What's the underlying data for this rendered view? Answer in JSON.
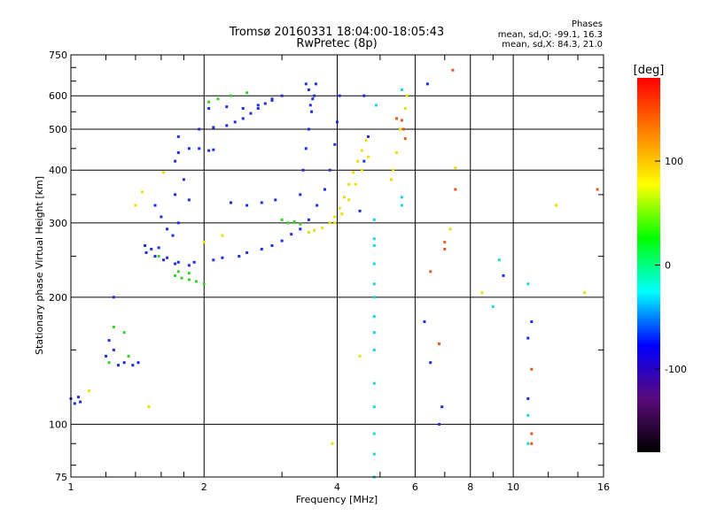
{
  "chart_data": {
    "type": "scatter",
    "title": "Tromsø 20160331 18:04:00-18:05:43",
    "subtitle": "RwPretec (8p)",
    "xlabel": "Frequency [MHz]",
    "ylabel": "Stationary phase Virtual Height [km]",
    "x_scale": "log",
    "y_scale": "log",
    "xlim": [
      1,
      16
    ],
    "ylim": [
      75,
      750
    ],
    "x_ticks": [
      1,
      2,
      4,
      6,
      8,
      10,
      16
    ],
    "y_ticks": [
      75,
      100,
      200,
      300,
      400,
      500,
      600,
      750
    ],
    "grid": true,
    "stats": {
      "heading": "Phases",
      "line_o": "mean, sd,O: -99.1, 16.3",
      "line_x": "mean, sd,X:  84.3, 21.0"
    },
    "colorbar": {
      "label": "[deg]",
      "range": [
        -180,
        180
      ],
      "ticks": [
        100,
        0,
        -100
      ],
      "colors": [
        "#000000",
        "#5a0a7a",
        "#0000ff",
        "#00ffff",
        "#00ff00",
        "#ffff00",
        "#ff8000",
        "#ff0000"
      ]
    },
    "series": [
      {
        "points": [
          [
            1.0,
            115
          ],
          [
            1.02,
            112
          ],
          [
            1.04,
            116
          ],
          [
            1.05,
            113
          ],
          [
            1.2,
            145
          ],
          [
            1.22,
            158
          ],
          [
            1.25,
            150
          ],
          [
            1.28,
            138
          ],
          [
            1.32,
            140
          ],
          [
            1.38,
            138
          ],
          [
            1.42,
            140
          ],
          [
            1.47,
            265
          ],
          [
            1.52,
            260
          ],
          [
            1.58,
            262
          ],
          [
            1.65,
            248
          ],
          [
            1.75,
            242
          ],
          [
            1.9,
            242
          ],
          [
            2.1,
            245
          ],
          [
            2.4,
            250
          ],
          [
            2.7,
            260
          ],
          [
            3.0,
            272
          ],
          [
            3.3,
            290
          ],
          [
            3.6,
            330
          ],
          [
            3.85,
            400
          ],
          [
            4.0,
            520
          ],
          [
            4.05,
            600
          ],
          [
            1.48,
            255
          ],
          [
            1.55,
            250
          ],
          [
            1.62,
            245
          ],
          [
            1.72,
            240
          ],
          [
            1.85,
            238
          ],
          [
            2.2,
            248
          ],
          [
            2.5,
            255
          ],
          [
            2.85,
            265
          ],
          [
            3.15,
            282
          ],
          [
            3.45,
            305
          ],
          [
            3.75,
            360
          ],
          [
            3.95,
            460
          ],
          [
            1.55,
            330
          ],
          [
            1.6,
            310
          ],
          [
            1.65,
            290
          ],
          [
            1.7,
            280
          ],
          [
            1.75,
            300
          ],
          [
            1.75,
            440
          ],
          [
            1.85,
            450
          ],
          [
            1.95,
            450
          ],
          [
            2.05,
            445
          ],
          [
            2.1,
            447
          ],
          [
            1.75,
            480
          ],
          [
            1.72,
            420
          ],
          [
            1.8,
            380
          ],
          [
            1.72,
            350
          ],
          [
            1.85,
            340
          ],
          [
            1.95,
            500
          ],
          [
            2.1,
            505
          ],
          [
            2.25,
            510
          ],
          [
            2.35,
            520
          ],
          [
            2.45,
            530
          ],
          [
            2.55,
            545
          ],
          [
            2.65,
            560
          ],
          [
            2.75,
            575
          ],
          [
            2.85,
            585
          ],
          [
            2.05,
            560
          ],
          [
            2.25,
            565
          ],
          [
            2.45,
            560
          ],
          [
            2.65,
            570
          ],
          [
            2.85,
            590
          ],
          [
            3.0,
            600
          ],
          [
            3.3,
            350
          ],
          [
            3.35,
            400
          ],
          [
            3.4,
            450
          ],
          [
            3.45,
            500
          ],
          [
            3.5,
            550
          ],
          [
            3.55,
            600
          ],
          [
            3.58,
            640
          ],
          [
            3.4,
            640
          ],
          [
            3.45,
            620
          ],
          [
            3.52,
            590
          ],
          [
            3.48,
            570
          ],
          [
            2.3,
            335
          ],
          [
            2.5,
            330
          ],
          [
            2.7,
            335
          ],
          [
            2.9,
            340
          ],
          [
            4.5,
            320
          ],
          [
            4.6,
            420
          ],
          [
            4.7,
            480
          ],
          [
            4.6,
            600
          ],
          [
            6.4,
            640
          ],
          [
            6.3,
            175
          ],
          [
            6.5,
            140
          ],
          [
            6.8,
            100
          ],
          [
            6.9,
            110
          ],
          [
            9.5,
            225
          ],
          [
            10.8,
            115
          ],
          [
            10.8,
            160
          ],
          [
            11.0,
            175
          ],
          [
            1.25,
            200
          ]
        ]
      },
      {
        "points": [
          [
            3.45,
            285
          ],
          [
            3.55,
            288
          ],
          [
            3.7,
            292
          ],
          [
            3.85,
            300
          ],
          [
            3.95,
            310
          ],
          [
            4.05,
            325
          ],
          [
            4.15,
            345
          ],
          [
            4.25,
            370
          ],
          [
            4.35,
            395
          ],
          [
            4.45,
            420
          ],
          [
            4.55,
            445
          ],
          [
            4.65,
            470
          ],
          [
            4.7,
            430
          ],
          [
            4.55,
            400
          ],
          [
            4.4,
            370
          ],
          [
            4.25,
            340
          ],
          [
            4.1,
            315
          ],
          [
            3.95,
            300
          ],
          [
            5.3,
            380
          ],
          [
            5.35,
            400
          ],
          [
            5.45,
            440
          ],
          [
            5.55,
            500
          ],
          [
            5.7,
            560
          ],
          [
            5.75,
            600
          ],
          [
            5.6,
            620
          ],
          [
            1.62,
            395
          ],
          [
            1.45,
            355
          ],
          [
            1.4,
            330
          ],
          [
            2.0,
            270
          ],
          [
            2.2,
            280
          ],
          [
            1.1,
            120
          ],
          [
            1.5,
            110
          ],
          [
            4.5,
            145
          ],
          [
            7.4,
            405
          ],
          [
            7.2,
            290
          ],
          [
            8.5,
            205
          ],
          [
            3.9,
            90
          ],
          [
            14.5,
            205
          ],
          [
            12.5,
            330
          ]
        ]
      },
      {
        "points": [
          [
            1.72,
            225
          ],
          [
            1.78,
            222
          ],
          [
            1.85,
            220
          ],
          [
            1.92,
            218
          ],
          [
            2.0,
            215
          ],
          [
            1.75,
            230
          ],
          [
            1.85,
            228
          ],
          [
            3.0,
            305
          ],
          [
            3.1,
            300
          ],
          [
            3.2,
            302
          ],
          [
            3.3,
            298
          ],
          [
            2.05,
            580
          ],
          [
            2.15,
            590
          ],
          [
            2.3,
            600
          ],
          [
            2.5,
            610
          ],
          [
            1.25,
            170
          ],
          [
            1.32,
            165
          ],
          [
            1.22,
            140
          ],
          [
            1.35,
            145
          ],
          [
            1.58,
            250
          ]
        ]
      },
      {
        "points": [
          [
            4.85,
            75
          ],
          [
            4.85,
            85
          ],
          [
            4.85,
            95
          ],
          [
            4.85,
            110
          ],
          [
            4.85,
            125
          ],
          [
            4.85,
            150
          ],
          [
            4.85,
            165
          ],
          [
            4.85,
            180
          ],
          [
            4.85,
            200
          ],
          [
            4.85,
            215
          ],
          [
            4.85,
            240
          ],
          [
            4.85,
            265
          ],
          [
            4.85,
            275
          ],
          [
            4.85,
            305
          ],
          [
            5.6,
            330
          ],
          [
            5.6,
            345
          ],
          [
            5.6,
            620
          ],
          [
            9.0,
            190
          ],
          [
            9.3,
            245
          ],
          [
            10.8,
            90
          ],
          [
            10.8,
            105
          ],
          [
            10.8,
            215
          ],
          [
            4.9,
            570
          ]
        ]
      },
      {
        "points": [
          [
            5.65,
            500
          ],
          [
            5.7,
            475
          ],
          [
            5.6,
            525
          ],
          [
            7.3,
            690
          ],
          [
            7.4,
            360
          ],
          [
            7.0,
            270
          ],
          [
            7.0,
            260
          ],
          [
            6.5,
            230
          ],
          [
            6.8,
            155
          ],
          [
            11.0,
            90
          ],
          [
            11.0,
            95
          ],
          [
            11.0,
            135
          ],
          [
            15.5,
            360
          ],
          [
            5.45,
            530
          ]
        ]
      }
    ]
  }
}
